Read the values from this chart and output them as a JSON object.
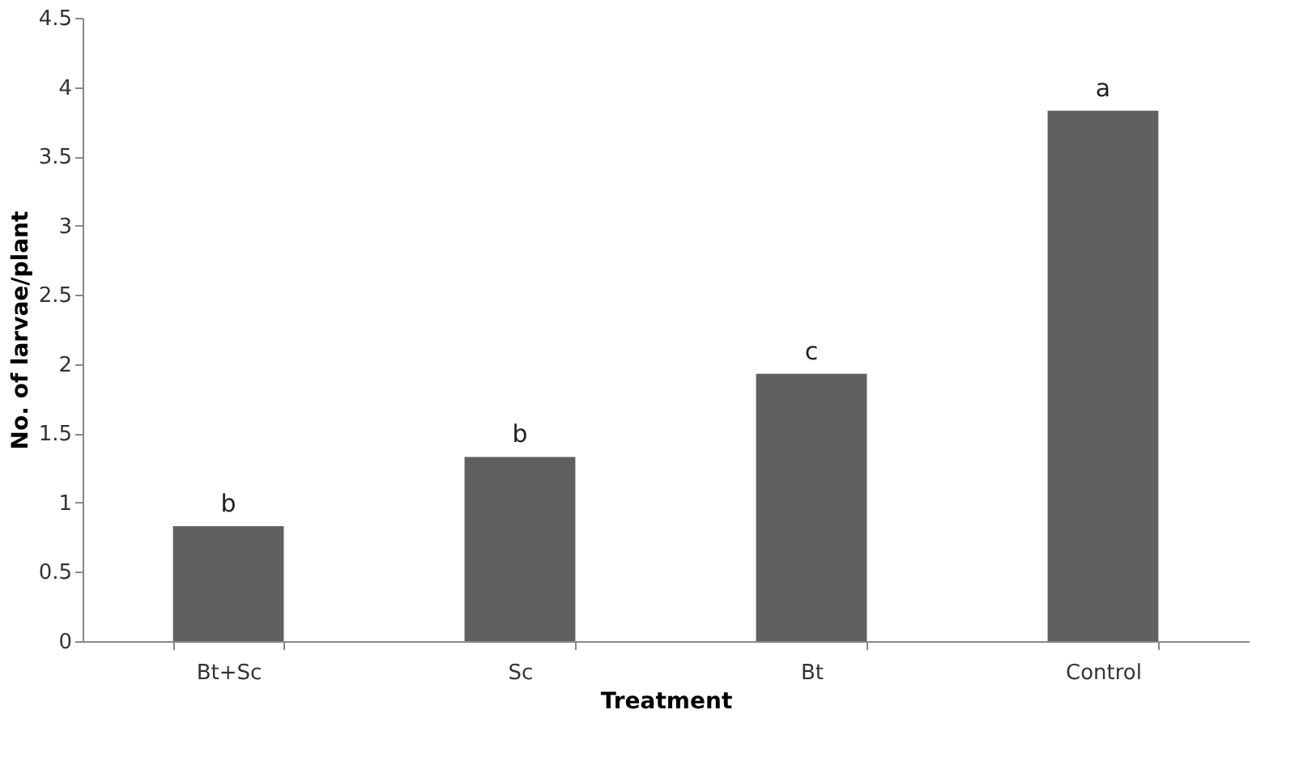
{
  "chart_data": {
    "type": "bar",
    "xlabel": "Treatment",
    "ylabel": "No. of larvae/plant",
    "categories": [
      "Bt+Sc",
      "Sc",
      "Bt",
      "Control"
    ],
    "values": [
      0.83,
      1.33,
      1.93,
      3.83
    ],
    "color": "#606060",
    "ylim": [
      0,
      4.5
    ],
    "yticks": [
      0,
      0.5,
      1,
      1.5,
      2,
      2.5,
      3,
      3.5,
      4,
      4.5
    ],
    "grid": false,
    "annotations": [
      {
        "text": "b",
        "x": "Bt+Sc",
        "y": 0.83
      },
      {
        "text": "b",
        "x": "Sc",
        "y": 1.33
      },
      {
        "text": "c",
        "x": "Bt",
        "y": 1.93
      },
      {
        "text": "a",
        "x": "Control",
        "y": 3.83
      }
    ]
  }
}
